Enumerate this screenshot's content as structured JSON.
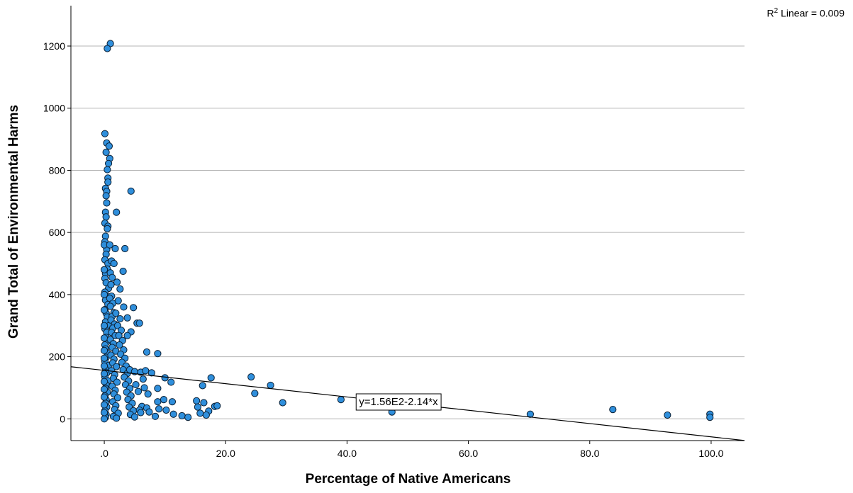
{
  "chart_data": {
    "type": "scatter",
    "title": "",
    "xlabel": "Percentage of Native Americans",
    "ylabel": "Grand Total of Environmental Harms",
    "xlim": [
      -5.5,
      105.5
    ],
    "ylim": [
      -70,
      1330
    ],
    "x_ticks": [
      0,
      20,
      40,
      60,
      80,
      100
    ],
    "x_tick_labels": [
      ".0",
      "20.0",
      "40.0",
      "60.0",
      "80.0",
      "100.0"
    ],
    "y_ticks": [
      0,
      200,
      400,
      600,
      800,
      1000,
      1200
    ],
    "y_tick_labels": [
      "0",
      "200",
      "400",
      "600",
      "800",
      "1000",
      "1200"
    ],
    "grid": "horizontal",
    "point_color": "#2f8fdc",
    "line_color": "#000000",
    "r2_prefix": "R",
    "r2_sup": "2",
    "r2_text": "Linear = 0.009",
    "fit_line": {
      "intercept": 156,
      "slope": -2.14,
      "label": "y=1.56E2-2.14*x"
    },
    "points": [
      [
        1.0,
        1208
      ],
      [
        0.5,
        1192
      ],
      [
        0.1,
        918
      ],
      [
        0.4,
        888
      ],
      [
        0.8,
        878
      ],
      [
        0.3,
        858
      ],
      [
        0.9,
        838
      ],
      [
        0.7,
        822
      ],
      [
        0.5,
        802
      ],
      [
        0.6,
        775
      ],
      [
        0.6,
        762
      ],
      [
        0.2,
        742
      ],
      [
        0.4,
        732
      ],
      [
        0.3,
        718
      ],
      [
        0.4,
        695
      ],
      [
        0.2,
        665
      ],
      [
        0.3,
        650
      ],
      [
        0.1,
        630
      ],
      [
        0.6,
        620
      ],
      [
        0.5,
        612
      ],
      [
        0.2,
        588
      ],
      [
        0.1,
        570
      ],
      [
        0.4,
        545
      ],
      [
        0.3,
        530
      ],
      [
        0.1,
        512
      ],
      [
        0.6,
        500
      ],
      [
        0.5,
        482
      ],
      [
        0.2,
        468
      ],
      [
        0.1,
        452
      ],
      [
        0.3,
        438
      ],
      [
        0.7,
        420
      ],
      [
        0.1,
        408
      ],
      [
        0.4,
        395
      ],
      [
        0.2,
        382
      ],
      [
        0.6,
        368
      ],
      [
        0.1,
        352
      ],
      [
        0.3,
        340
      ],
      [
        0.5,
        328
      ],
      [
        0.2,
        312
      ],
      [
        0.8,
        300
      ],
      [
        0.1,
        290
      ],
      [
        0.4,
        278
      ],
      [
        0.3,
        262
      ],
      [
        0.6,
        250
      ],
      [
        0.1,
        238
      ],
      [
        0.2,
        225
      ],
      [
        0.5,
        212
      ],
      [
        0.3,
        198
      ],
      [
        0.1,
        185
      ],
      [
        0.7,
        172
      ],
      [
        0.2,
        160
      ],
      [
        0.4,
        148
      ],
      [
        0.1,
        135
      ],
      [
        0.6,
        122
      ],
      [
        0.3,
        110
      ],
      [
        0.2,
        98
      ],
      [
        0.5,
        86
      ],
      [
        0.1,
        74
      ],
      [
        0.3,
        62
      ],
      [
        0.2,
        50
      ],
      [
        0.4,
        38
      ],
      [
        0.1,
        26
      ],
      [
        0.3,
        14
      ],
      [
        0.2,
        5
      ],
      [
        0.0,
        0
      ],
      [
        0.0,
        20
      ],
      [
        0.0,
        45
      ],
      [
        0.0,
        70
      ],
      [
        0.0,
        95
      ],
      [
        0.0,
        120
      ],
      [
        0.0,
        145
      ],
      [
        0.0,
        170
      ],
      [
        0.0,
        195
      ],
      [
        0.0,
        220
      ],
      [
        0.0,
        260
      ],
      [
        0.0,
        300
      ],
      [
        0.0,
        350
      ],
      [
        0.0,
        400
      ],
      [
        0.0,
        480
      ],
      [
        0.0,
        560
      ],
      [
        0.9,
        560
      ],
      [
        1.2,
        508
      ],
      [
        1.0,
        470
      ],
      [
        1.3,
        455
      ],
      [
        1.1,
        432
      ],
      [
        1.2,
        395
      ],
      [
        0.9,
        388
      ],
      [
        1.4,
        372
      ],
      [
        1.0,
        362
      ],
      [
        1.6,
        342
      ],
      [
        1.3,
        330
      ],
      [
        1.1,
        318
      ],
      [
        1.7,
        305
      ],
      [
        1.4,
        292
      ],
      [
        1.2,
        278
      ],
      [
        1.8,
        268
      ],
      [
        1.0,
        255
      ],
      [
        1.5,
        242
      ],
      [
        1.3,
        230
      ],
      [
        1.9,
        218
      ],
      [
        1.1,
        205
      ],
      [
        1.6,
        192
      ],
      [
        1.4,
        180
      ],
      [
        2.0,
        168
      ],
      [
        1.2,
        155
      ],
      [
        1.7,
        142
      ],
      [
        1.5,
        130
      ],
      [
        2.1,
        118
      ],
      [
        1.3,
        105
      ],
      [
        1.8,
        92
      ],
      [
        1.6,
        80
      ],
      [
        2.2,
        68
      ],
      [
        1.4,
        55
      ],
      [
        1.9,
        42
      ],
      [
        1.7,
        30
      ],
      [
        2.3,
        18
      ],
      [
        1.5,
        8
      ],
      [
        2.0,
        2
      ],
      [
        2.0,
        665
      ],
      [
        1.8,
        548
      ],
      [
        1.6,
        500
      ],
      [
        2.1,
        440
      ],
      [
        2.3,
        380
      ],
      [
        1.9,
        340
      ],
      [
        2.6,
        322
      ],
      [
        2.2,
        300
      ],
      [
        2.8,
        285
      ],
      [
        2.4,
        268
      ],
      [
        3.0,
        252
      ],
      [
        2.5,
        238
      ],
      [
        3.2,
        222
      ],
      [
        2.7,
        208
      ],
      [
        3.4,
        195
      ],
      [
        2.9,
        182
      ],
      [
        3.6,
        170
      ],
      [
        3.1,
        158
      ],
      [
        3.8,
        146
      ],
      [
        3.3,
        134
      ],
      [
        4.0,
        122
      ],
      [
        3.5,
        110
      ],
      [
        4.2,
        98
      ],
      [
        3.7,
        86
      ],
      [
        4.4,
        74
      ],
      [
        3.9,
        62
      ],
      [
        4.6,
        50
      ],
      [
        4.1,
        38
      ],
      [
        4.8,
        26
      ],
      [
        4.3,
        14
      ],
      [
        5.0,
        6
      ],
      [
        3.4,
        548
      ],
      [
        3.1,
        475
      ],
      [
        2.6,
        418
      ],
      [
        4.4,
        733
      ],
      [
        3.2,
        360
      ],
      [
        4.8,
        358
      ],
      [
        3.8,
        325
      ],
      [
        5.4,
        308
      ],
      [
        5.8,
        308
      ],
      [
        4.4,
        280
      ],
      [
        3.8,
        268
      ],
      [
        7.0,
        215
      ],
      [
        8.8,
        210
      ],
      [
        4.2,
        158
      ],
      [
        5.0,
        152
      ],
      [
        6.0,
        150
      ],
      [
        6.8,
        155
      ],
      [
        7.8,
        148
      ],
      [
        10.0,
        132
      ],
      [
        11.0,
        118
      ],
      [
        6.4,
        128
      ],
      [
        5.2,
        110
      ],
      [
        6.6,
        100
      ],
      [
        8.8,
        98
      ],
      [
        5.6,
        88
      ],
      [
        7.2,
        80
      ],
      [
        9.8,
        62
      ],
      [
        8.8,
        55
      ],
      [
        11.2,
        55
      ],
      [
        6.2,
        40
      ],
      [
        7.0,
        35
      ],
      [
        9.0,
        32
      ],
      [
        5.8,
        28
      ],
      [
        7.4,
        22
      ],
      [
        8.4,
        8
      ],
      [
        11.4,
        15
      ],
      [
        12.8,
        10
      ],
      [
        13.8,
        5
      ],
      [
        10.2,
        28
      ],
      [
        6.0,
        20
      ],
      [
        16.2,
        107
      ],
      [
        17.6,
        132
      ],
      [
        15.2,
        58
      ],
      [
        16.4,
        52
      ],
      [
        15.4,
        38
      ],
      [
        18.2,
        40
      ],
      [
        18.6,
        42
      ],
      [
        17.2,
        25
      ],
      [
        15.8,
        18
      ],
      [
        16.8,
        12
      ],
      [
        24.2,
        135
      ],
      [
        24.8,
        82
      ],
      [
        27.4,
        108
      ],
      [
        29.4,
        52
      ],
      [
        39.0,
        62
      ],
      [
        47.4,
        22
      ],
      [
        70.2,
        15
      ],
      [
        83.8,
        30
      ],
      [
        92.8,
        12
      ],
      [
        99.8,
        15
      ],
      [
        99.8,
        5
      ]
    ]
  }
}
